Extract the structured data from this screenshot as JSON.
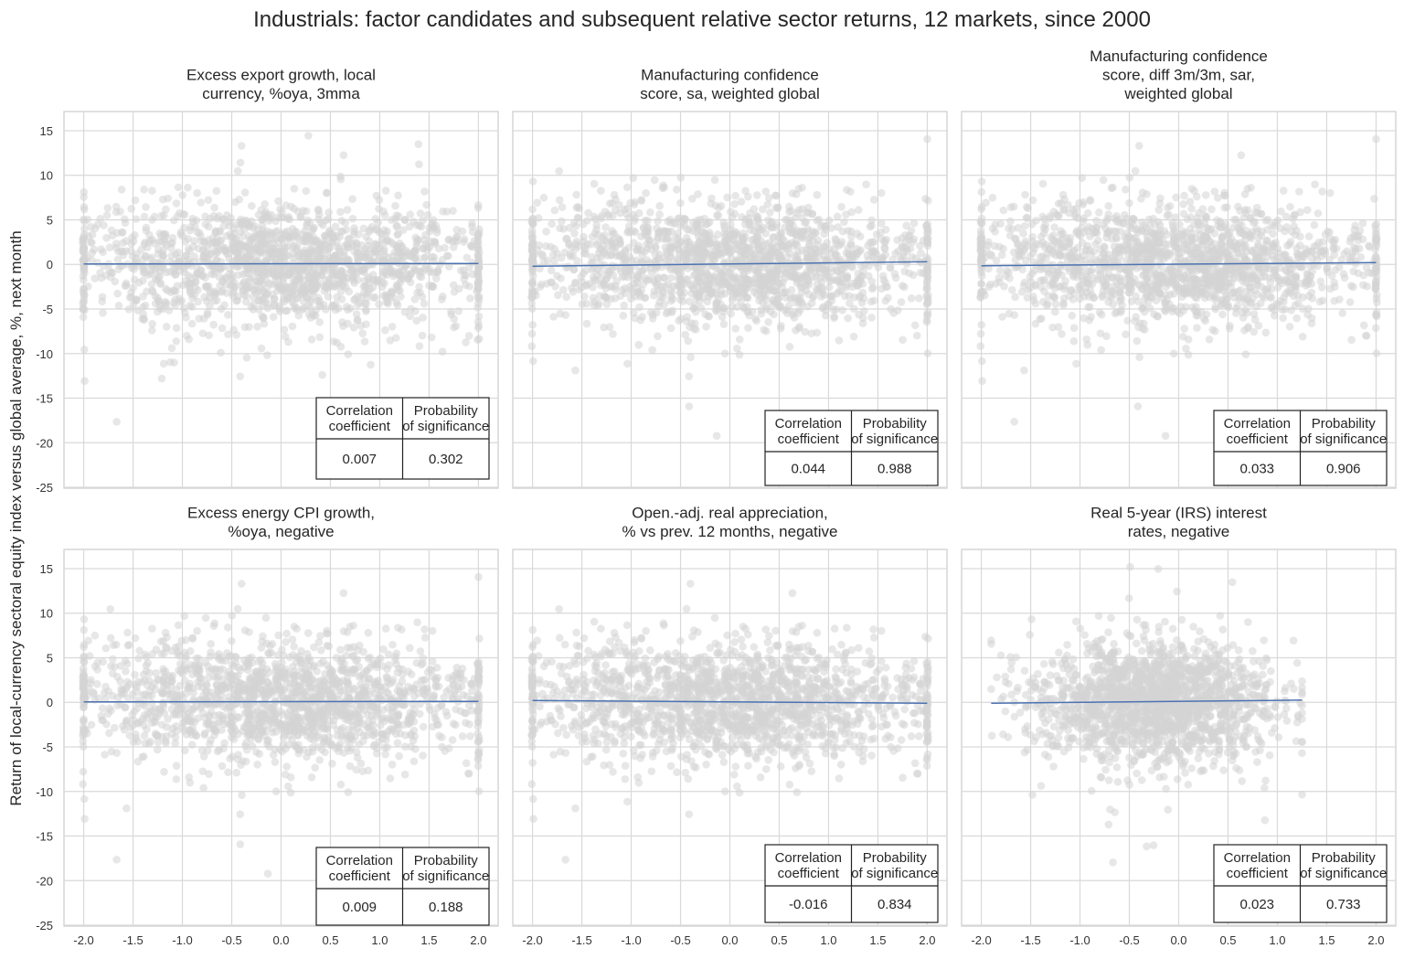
{
  "title": "Industrials: factor candidates and subsequent relative sector returns, 12 markets, since 2000",
  "chart_data": {
    "type": "scatter",
    "ylabel": "Return of local-currency sectoral equity index versus global average, %, next month",
    "xlim": [
      -2.2,
      2.2
    ],
    "ylim": [
      -25,
      17
    ],
    "xticks": [
      "-2.0",
      "-1.5",
      "-1.0",
      "-0.5",
      "0.0",
      "0.5",
      "1.0",
      "1.5",
      "2.0"
    ],
    "yticks": [
      "15",
      "10",
      "5",
      "0",
      "-5",
      "-10",
      "-15",
      "-20",
      "-25"
    ],
    "grid": true,
    "point_color": "#d3d3d3",
    "line_color": "#4c72b0",
    "table_headers": [
      [
        "Correlation",
        "coefficient"
      ],
      [
        "Probability",
        "of significance"
      ]
    ],
    "panels": [
      {
        "title": [
          "Excess export growth, local",
          "currency, %oya, 3mma"
        ],
        "correlation": "0.007",
        "probability": "0.302",
        "x_range": [
          -2,
          2
        ],
        "regression": [
          [
            -2,
            0.05
          ],
          [
            2,
            0.1
          ]
        ]
      },
      {
        "title": [
          "Manufacturing confidence",
          "score, sa, weighted global"
        ],
        "correlation": "0.044",
        "probability": "0.988",
        "x_range": [
          -2,
          2
        ],
        "regression": [
          [
            -2,
            -0.2
          ],
          [
            2,
            0.3
          ]
        ]
      },
      {
        "title": [
          "Manufacturing confidence",
          "score, diff 3m/3m, sar,",
          "weighted global"
        ],
        "correlation": "0.033",
        "probability": "0.906",
        "x_range": [
          -2,
          2
        ],
        "regression": [
          [
            -2,
            -0.15
          ],
          [
            2,
            0.2
          ]
        ]
      },
      {
        "title": [
          "Excess energy CPI growth,",
          "%oya, negative"
        ],
        "correlation": "0.009",
        "probability": "0.188",
        "x_range": [
          -2,
          2
        ],
        "regression": [
          [
            -2,
            0.05
          ],
          [
            2,
            0.1
          ]
        ]
      },
      {
        "title": [
          "Open.-adj. real appreciation,",
          "% vs prev. 12 months, negative"
        ],
        "correlation": "-0.016",
        "probability": "0.834",
        "x_range": [
          -2,
          2
        ],
        "regression": [
          [
            -2,
            0.2
          ],
          [
            2,
            -0.1
          ]
        ]
      },
      {
        "title": [
          "Real 5-year (IRS) interest",
          "rates, negative"
        ],
        "correlation": "0.023",
        "probability": "0.733",
        "x_range": [
          -1.9,
          1.25
        ],
        "regression": [
          [
            -1.9,
            -0.1
          ],
          [
            1.25,
            0.25
          ]
        ]
      }
    ]
  }
}
